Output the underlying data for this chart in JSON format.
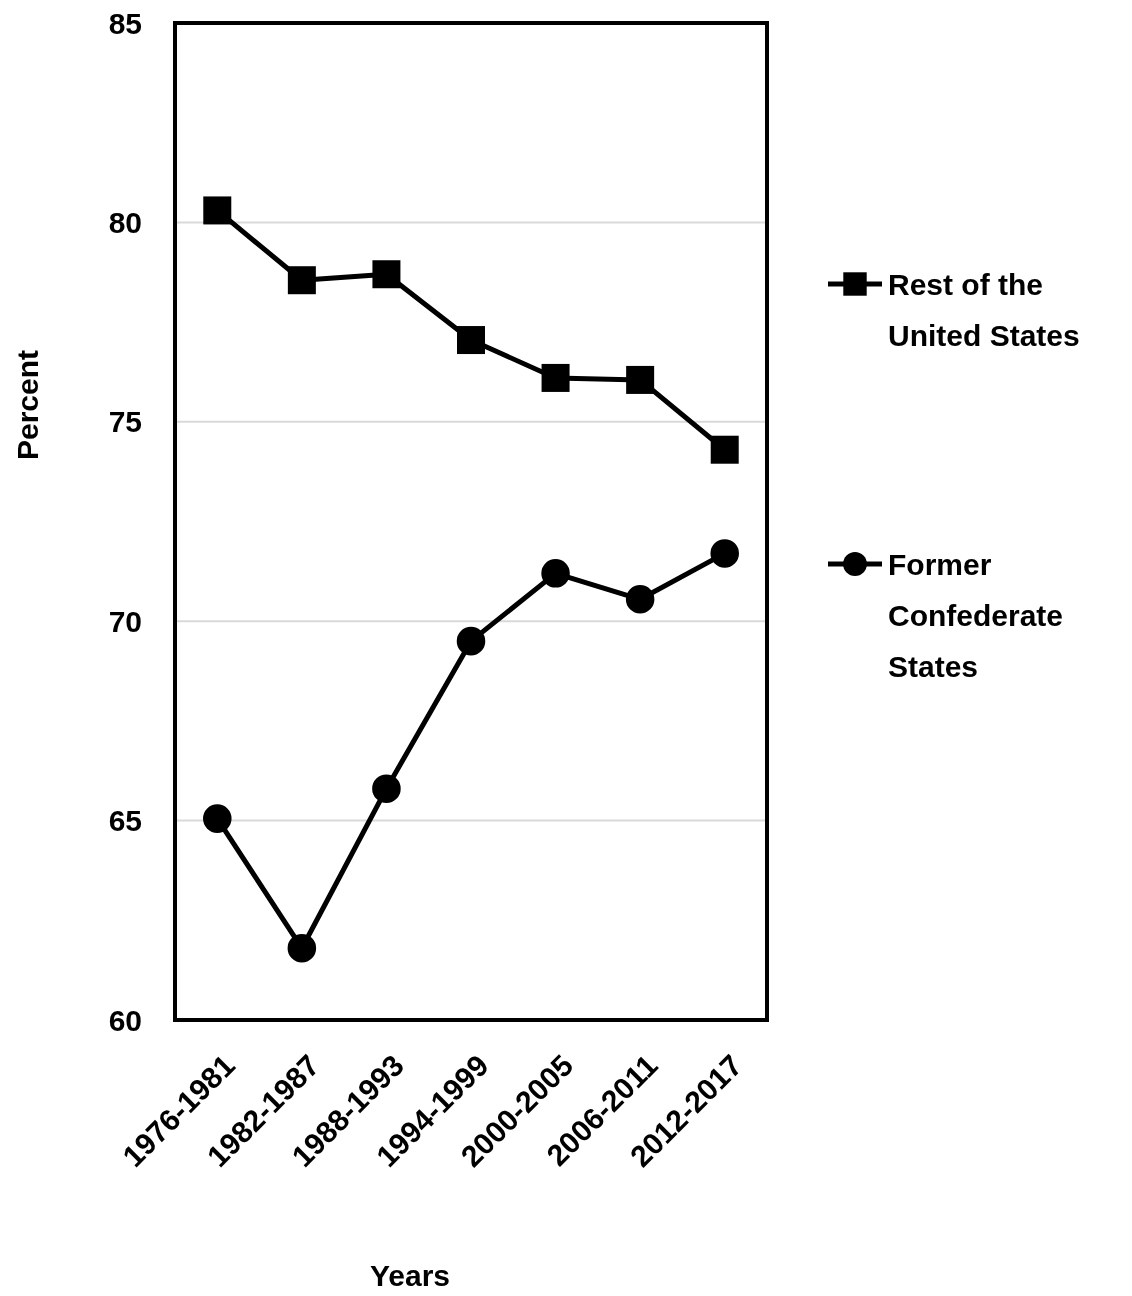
{
  "chart_data": {
    "type": "line",
    "xlabel": "Years",
    "ylabel": "Percent",
    "categories": [
      "1976-1981",
      "1982-1987",
      "1988-1993",
      "1994-1999",
      "2000-2005",
      "2006-2011",
      "2012-2017"
    ],
    "series": [
      {
        "name": "Rest of the United States",
        "color": "#000000",
        "marker": "square",
        "values": [
          80.3,
          78.55,
          78.7,
          77.05,
          76.1,
          76.05,
          74.3
        ]
      },
      {
        "name": "Former Confederate States",
        "color": "#000000",
        "marker": "circle",
        "values": [
          65.05,
          61.8,
          65.8,
          69.5,
          71.2,
          70.55,
          71.7
        ]
      }
    ],
    "ylim": [
      60,
      85
    ],
    "yticks": [
      60,
      65,
      70,
      75,
      80,
      85
    ],
    "grid": "y",
    "legend": "right",
    "line_style": "solid"
  }
}
